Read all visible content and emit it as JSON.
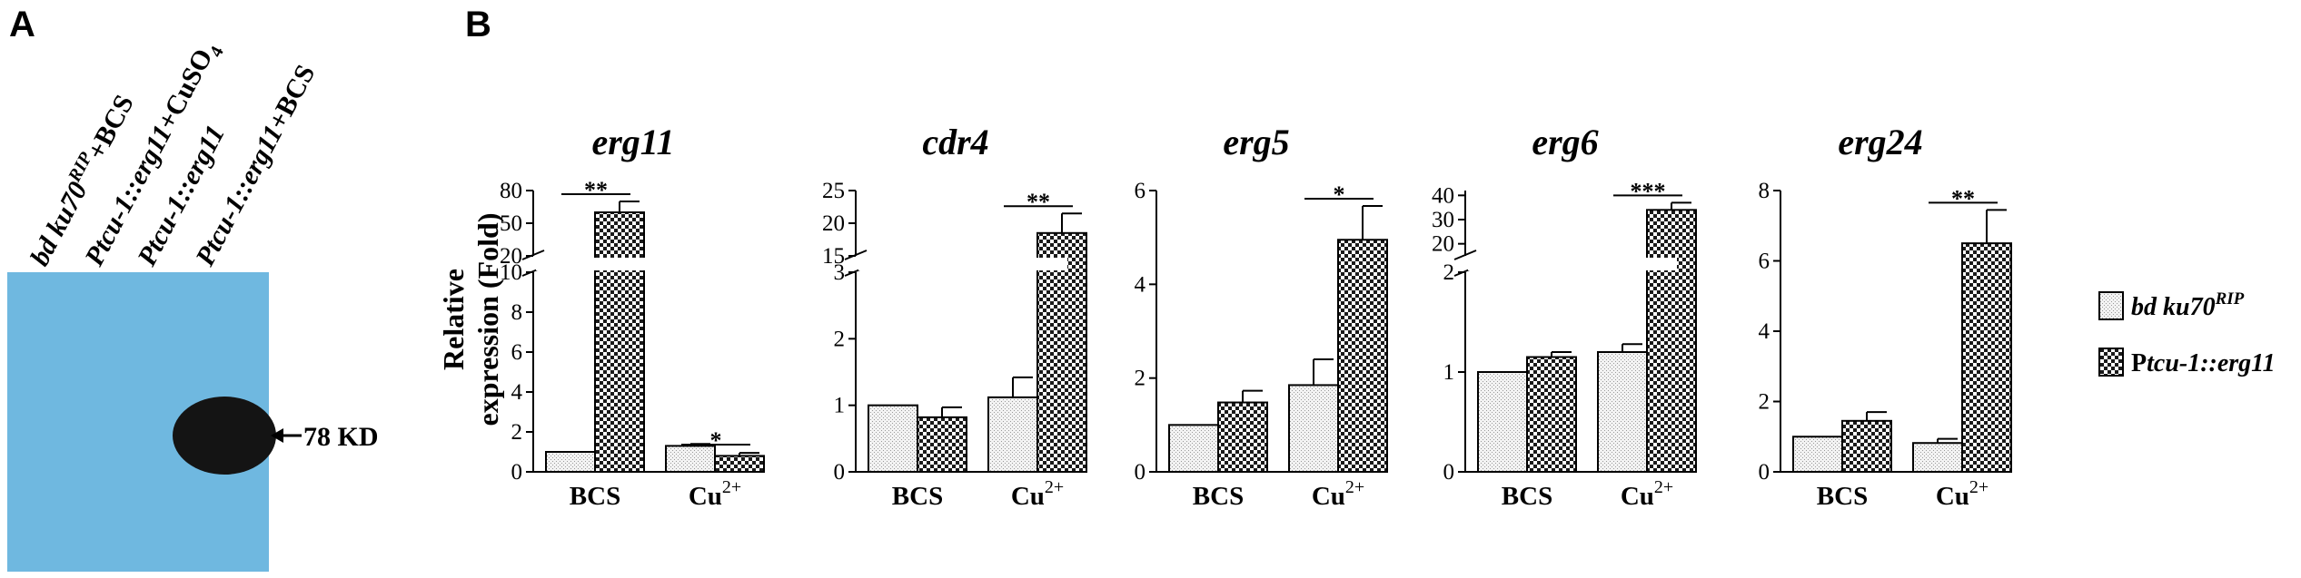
{
  "panels": {
    "a_label": "A",
    "b_label": "B"
  },
  "blot": {
    "background_color": "#6fb8e0",
    "band_color": "#141414",
    "lanes": [
      {
        "pre": "bd ku70",
        "sup": "RIP",
        "post": "+BCS"
      },
      {
        "pre": "Ptcu-1::erg11",
        "sup": "",
        "post": "+CuSO",
        "sub": "4"
      },
      {
        "pre": "Ptcu-1::erg11",
        "sup": "",
        "post": ""
      },
      {
        "pre": "Ptcu-1::erg11",
        "sup": "",
        "post": "+BCS"
      }
    ],
    "marker_label": "78 KD",
    "band_lane_index": 3
  },
  "y_axis_label_line1": "Relative",
  "y_axis_label_line2": "expression (Fold)",
  "legend": {
    "items": [
      {
        "pre": "bd ku70",
        "sup": "RIP",
        "fill": "dots"
      },
      {
        "pre": "P",
        "italic": "tcu-1::erg11",
        "fill": "checker"
      }
    ]
  },
  "chart_data": [
    {
      "type": "bar",
      "title": "erg11",
      "categories": [
        "BCS",
        "Cu2+"
      ],
      "category_labels": [
        {
          "text": "BCS",
          "sup": ""
        },
        {
          "text": "Cu",
          "sup": "2+"
        }
      ],
      "series": [
        {
          "name": "bd ku70RIP",
          "values": [
            1.0,
            1.3
          ],
          "errors": [
            0.0,
            0.1
          ]
        },
        {
          "name": "Ptcu-1::erg11",
          "values": [
            60,
            0.8
          ],
          "errors": [
            10,
            0.15
          ]
        }
      ],
      "axis_break": true,
      "lower_range": [
        0,
        10
      ],
      "lower_ticks": [
        0,
        2,
        4,
        6,
        8,
        10
      ],
      "upper_range": [
        20,
        80
      ],
      "upper_ticks": [
        20,
        50,
        80
      ],
      "significance": [
        {
          "category_index": 0,
          "label": "**",
          "anchor": 70
        },
        {
          "category_index": 1,
          "label": "*",
          "anchor": 1.0
        }
      ]
    },
    {
      "type": "bar",
      "title": "cdr4",
      "categories": [
        "BCS",
        "Cu2+"
      ],
      "category_labels": [
        {
          "text": "BCS",
          "sup": ""
        },
        {
          "text": "Cu",
          "sup": "2+"
        }
      ],
      "series": [
        {
          "name": "bd ku70RIP",
          "values": [
            1.0,
            1.12
          ],
          "errors": [
            0.0,
            0.3
          ]
        },
        {
          "name": "Ptcu-1::erg11",
          "values": [
            0.82,
            18.5
          ],
          "errors": [
            0.15,
            3.0
          ]
        }
      ],
      "axis_break": true,
      "lower_range": [
        0,
        3
      ],
      "lower_ticks": [
        0,
        1,
        2,
        3
      ],
      "upper_range": [
        15,
        25
      ],
      "upper_ticks": [
        15,
        20,
        25
      ],
      "significance": [
        {
          "category_index": 1,
          "label": "**",
          "anchor": 21.5
        }
      ]
    },
    {
      "type": "bar",
      "title": "erg5",
      "categories": [
        "BCS",
        "Cu2+"
      ],
      "category_labels": [
        {
          "text": "BCS",
          "sup": ""
        },
        {
          "text": "Cu",
          "sup": "2+"
        }
      ],
      "series": [
        {
          "name": "bd ku70RIP",
          "values": [
            1.0,
            1.85
          ],
          "errors": [
            0.0,
            0.55
          ]
        },
        {
          "name": "Ptcu-1::erg11",
          "values": [
            1.48,
            4.95
          ],
          "errors": [
            0.25,
            0.72
          ]
        }
      ],
      "axis_break": false,
      "range": [
        0,
        6
      ],
      "ticks": [
        0,
        2,
        4,
        6
      ],
      "significance": [
        {
          "category_index": 1,
          "label": "*",
          "anchor": 5.67
        }
      ]
    },
    {
      "type": "bar",
      "title": "erg6",
      "categories": [
        "BCS",
        "Cu2+"
      ],
      "category_labels": [
        {
          "text": "BCS",
          "sup": ""
        },
        {
          "text": "Cu",
          "sup": "2+"
        }
      ],
      "series": [
        {
          "name": "bd ku70RIP",
          "values": [
            1.0,
            1.2
          ],
          "errors": [
            0.0,
            0.08
          ]
        },
        {
          "name": "Ptcu-1::erg11",
          "values": [
            1.15,
            34
          ],
          "errors": [
            0.05,
            3.0
          ]
        }
      ],
      "axis_break": true,
      "lower_range": [
        0,
        2
      ],
      "lower_ticks": [
        0,
        1,
        2
      ],
      "upper_range": [
        15,
        42
      ],
      "upper_ticks": [
        20,
        30,
        40
      ],
      "significance": [
        {
          "category_index": 1,
          "label": "***",
          "anchor": 37
        }
      ]
    },
    {
      "type": "bar",
      "title": "erg24",
      "categories": [
        "BCS",
        "Cu2+"
      ],
      "category_labels": [
        {
          "text": "BCS",
          "sup": ""
        },
        {
          "text": "Cu",
          "sup": "2+"
        }
      ],
      "series": [
        {
          "name": "bd ku70RIP",
          "values": [
            1.0,
            0.82
          ],
          "errors": [
            0.0,
            0.12
          ]
        },
        {
          "name": "Ptcu-1::erg11",
          "values": [
            1.45,
            6.5
          ],
          "errors": [
            0.25,
            0.95
          ]
        }
      ],
      "axis_break": false,
      "range": [
        0,
        8
      ],
      "ticks": [
        0,
        2,
        4,
        6,
        8
      ],
      "significance": [
        {
          "category_index": 1,
          "label": "**",
          "anchor": 7.45
        }
      ]
    }
  ]
}
